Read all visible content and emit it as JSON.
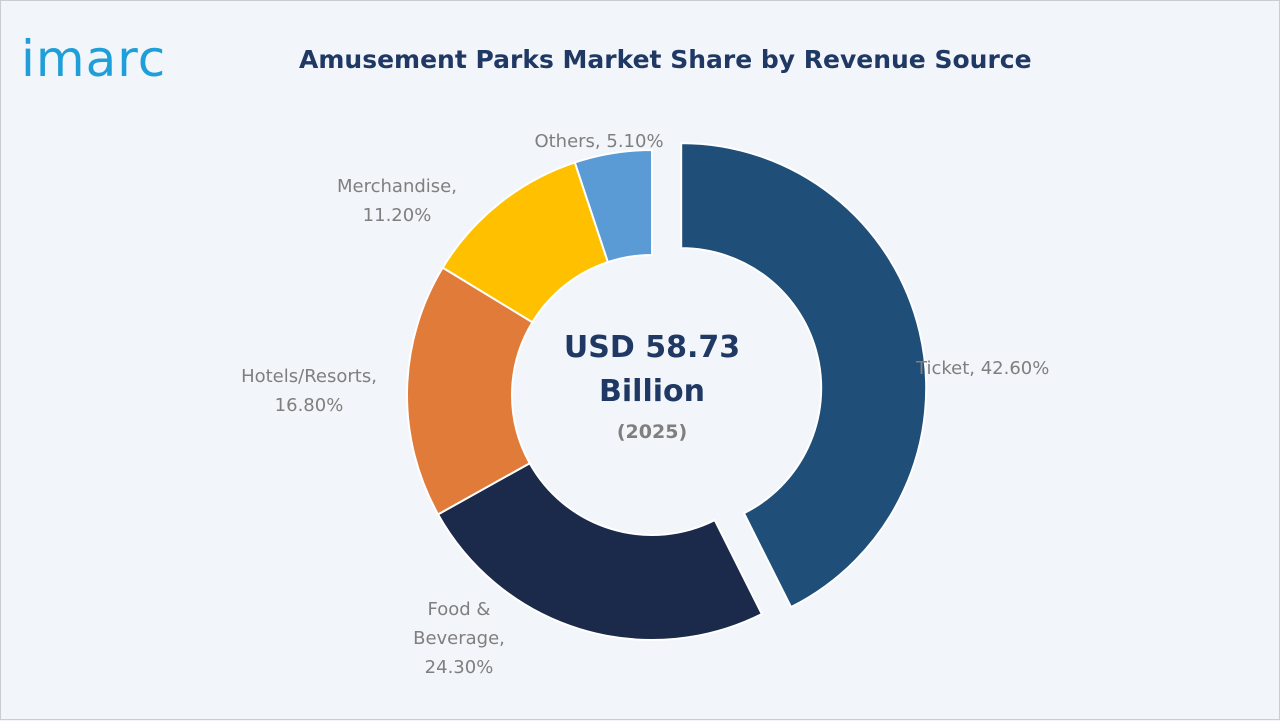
{
  "logo": {
    "text": "imarc",
    "color": "#1e9fd9"
  },
  "chart_data": {
    "type": "pie",
    "title": "Amusement Parks Market Share by Revenue Source",
    "center": {
      "value": "USD 58.73",
      "unit": "Billion",
      "year": "(2025)"
    },
    "slices": [
      {
        "name": "Ticket",
        "label_lines": [
          "Ticket, 42.60%"
        ],
        "value": 42.6,
        "color": "#1f4e79",
        "exploded": true
      },
      {
        "name": "Food & Beverage",
        "label_lines": [
          "Food &",
          "Beverage,",
          "24.30%"
        ],
        "value": 24.3,
        "color": "#1b2a4a",
        "exploded": false
      },
      {
        "name": "Hotels/Resorts",
        "label_lines": [
          "Hotels/Resorts,",
          "16.80%"
        ],
        "value": 16.8,
        "color": "#e07b39",
        "exploded": false
      },
      {
        "name": "Merchandise",
        "label_lines": [
          "Merchandise,",
          "11.20%"
        ],
        "value": 11.2,
        "color": "#ffc000",
        "exploded": false
      },
      {
        "name": "Others",
        "label_lines": [
          "Others, 5.10%"
        ],
        "value": 5.1,
        "color": "#5b9bd5",
        "exploded": false
      }
    ]
  }
}
